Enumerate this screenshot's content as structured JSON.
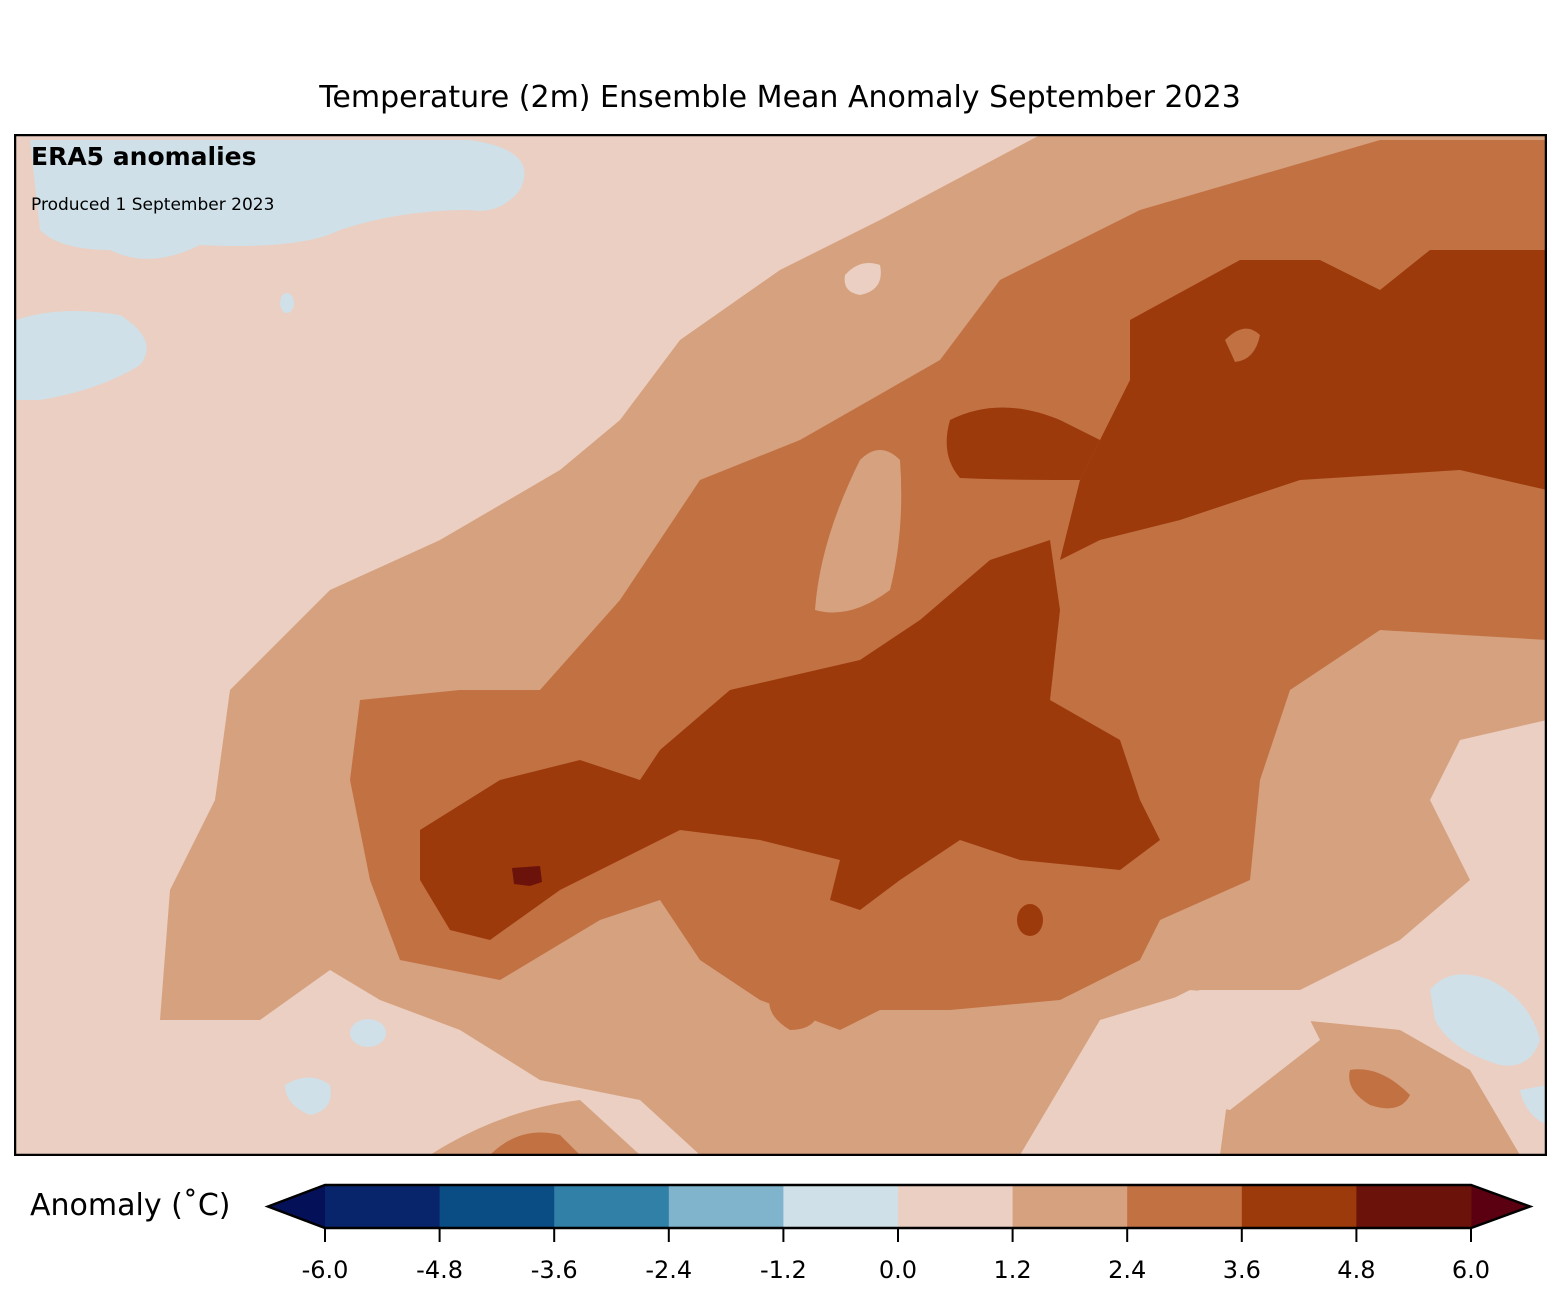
{
  "title": "Temperature (2m) Ensemble Mean Anomaly September 2023",
  "annotations": {
    "heading": "ERA5 anomalies",
    "produced": "Produced 1 September 2023"
  },
  "colorbar": {
    "label": "Anomaly (˚C)",
    "ticks": [
      "-6.0",
      "-4.8",
      "-3.6",
      "-2.4",
      "-1.2",
      "0.0",
      "1.2",
      "2.4",
      "3.6",
      "4.8",
      "6.0"
    ],
    "colors": [
      "#08246a",
      "#0a4d85",
      "#3080a8",
      "#80b3cc",
      "#cfe0e8",
      "#ebcfc2",
      "#d6a17e",
      "#c27142",
      "#9c3a0c",
      "#6b120b"
    ],
    "under_color": "#041058",
    "over_color": "#5a0010"
  },
  "legend_data": {
    "type": "filled-contour-map",
    "levels": [
      -6.0,
      -4.8,
      -3.6,
      -2.4,
      -1.2,
      0.0,
      1.2,
      2.4,
      3.6,
      4.8,
      6.0
    ],
    "extend": "both"
  }
}
